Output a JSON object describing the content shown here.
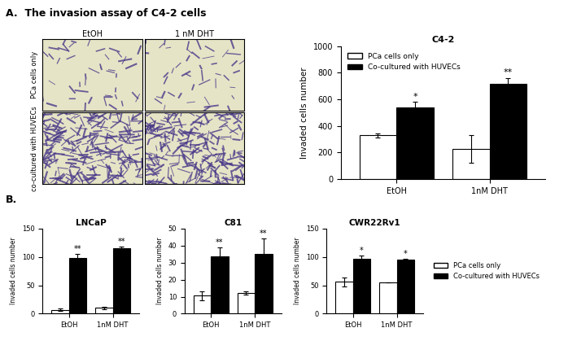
{
  "panels": {
    "A": "A.  The invasion assay of C4-2 cells",
    "B": "B."
  },
  "micrographs": {
    "columns": [
      "EtOH",
      "1 nM DHT"
    ],
    "rows": [
      "PCa cells only",
      "co-cultured with HUVECs"
    ]
  },
  "chart_data": [
    {
      "type": "bar",
      "panel": "A",
      "title": "C4-2",
      "y_label": "Invaded cells number",
      "categories": [
        "EtOH",
        "1nM DHT"
      ],
      "ylim": [
        0,
        1000
      ],
      "yticks": [
        0,
        200,
        400,
        600,
        800,
        1000
      ],
      "legend": "upper left",
      "series": [
        {
          "name": "PCa cells only",
          "color": "#ffffff",
          "values": [
            330,
            225
          ],
          "errors": [
            15,
            105
          ],
          "annotations": [
            null,
            null
          ]
        },
        {
          "name": "Co-cultured with HUVECs",
          "color": "#000000",
          "values": [
            540,
            715
          ],
          "errors": [
            40,
            45
          ],
          "annotations": [
            "*",
            "**"
          ]
        }
      ]
    },
    {
      "type": "bar",
      "panel": "B",
      "title": "LNCaP",
      "y_label": "Invaded cells number",
      "categories": [
        "EtOH",
        "1nM DHT"
      ],
      "ylim": [
        0,
        150
      ],
      "yticks": [
        0,
        50,
        100,
        150
      ],
      "series": [
        {
          "name": "PCa cells only",
          "color": "#ffffff",
          "values": [
            7,
            10
          ],
          "errors": [
            2,
            2
          ],
          "annotations": [
            null,
            null
          ]
        },
        {
          "name": "Co-cultured with HUVECs",
          "color": "#000000",
          "values": [
            98,
            115
          ],
          "errors": [
            7,
            3
          ],
          "annotations": [
            "**",
            "**"
          ]
        }
      ]
    },
    {
      "type": "bar",
      "panel": "B",
      "title": "C81",
      "y_label": "Invaded cells number",
      "categories": [
        "EtOH",
        "1nM DHT"
      ],
      "ylim": [
        0,
        50
      ],
      "yticks": [
        0,
        10,
        20,
        30,
        40,
        50
      ],
      "series": [
        {
          "name": "PCa cells only",
          "color": "#ffffff",
          "values": [
            10.5,
            12
          ],
          "errors": [
            2.5,
            1
          ],
          "annotations": [
            null,
            null
          ]
        },
        {
          "name": "Co-cultured with HUVECs",
          "color": "#000000",
          "values": [
            33.5,
            35
          ],
          "errors": [
            5.5,
            9
          ],
          "annotations": [
            "**",
            "**"
          ]
        }
      ]
    },
    {
      "type": "bar",
      "panel": "B",
      "title": "CWR22Rv1",
      "y_label": "Invaded cells number",
      "categories": [
        "EtOH",
        "1nM DHT"
      ],
      "ylim": [
        0,
        150
      ],
      "yticks": [
        0,
        50,
        100,
        150
      ],
      "legend": "right",
      "series": [
        {
          "name": "PCa cells only",
          "color": "#ffffff",
          "values": [
            56,
            55
          ],
          "errors": [
            8,
            0.5
          ],
          "annotations": [
            null,
            null
          ]
        },
        {
          "name": "Co-cultured with HUVECs",
          "color": "#000000",
          "values": [
            97,
            95
          ],
          "errors": [
            5,
            2
          ],
          "annotations": [
            "*",
            "*"
          ]
        }
      ]
    }
  ]
}
